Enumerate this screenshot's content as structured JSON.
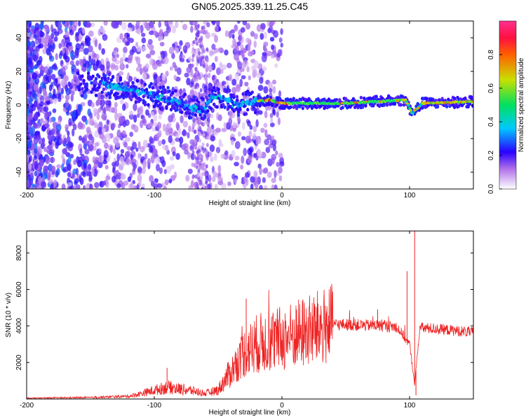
{
  "title": "GN05.2025.339.11.25.C45",
  "chart_data": [
    {
      "type": "heatmap",
      "title": "GN05.2025.339.11.25.C45",
      "xlabel": "Height of straight line (km)",
      "ylabel": "Frequency (Hz)",
      "xlim": [
        -200,
        150
      ],
      "ylim": [
        -50,
        50
      ],
      "xticks": [
        -200,
        -100,
        0,
        100
      ],
      "yticks": [
        -40,
        -20,
        0,
        20,
        40
      ],
      "colorbar": {
        "label": "Normalized spectral amplitude",
        "range": [
          0.0,
          1.0
        ],
        "ticks": [
          0.0,
          0.2,
          0.4,
          0.6,
          0.8
        ]
      },
      "ridge_frequency_hz": [
        {
          "x": -140,
          "y": 12
        },
        {
          "x": -120,
          "y": 9
        },
        {
          "x": -100,
          "y": 6
        },
        {
          "x": -80,
          "y": 1
        },
        {
          "x": -70,
          "y": -2
        },
        {
          "x": -60,
          "y": -3
        },
        {
          "x": -55,
          "y": 6
        },
        {
          "x": -45,
          "y": 4
        },
        {
          "x": -35,
          "y": -1
        },
        {
          "x": -25,
          "y": 2
        },
        {
          "x": -10,
          "y": 3
        },
        {
          "x": 0,
          "y": 1
        },
        {
          "x": 50,
          "y": 1
        },
        {
          "x": 97,
          "y": 3
        },
        {
          "x": 102,
          "y": -5
        },
        {
          "x": 110,
          "y": 1
        },
        {
          "x": 150,
          "y": 2
        }
      ]
    },
    {
      "type": "line",
      "xlabel": "Height of straight line (km)",
      "ylabel": "SNR (10 * v/v)",
      "xlim": [
        -200,
        150
      ],
      "ylim": [
        0,
        9200
      ],
      "xticks": [
        -200,
        -100,
        0,
        100
      ],
      "yticks": [
        2000,
        4000,
        6000,
        8000
      ],
      "series": [
        {
          "name": "SNR",
          "color": "#ee2222",
          "envelope": [
            {
              "x": -200,
              "y": 50
            },
            {
              "x": -150,
              "y": 80
            },
            {
              "x": -120,
              "y": 150
            },
            {
              "x": -110,
              "y": 300
            },
            {
              "x": -90,
              "y": 650
            },
            {
              "x": -70,
              "y": 450
            },
            {
              "x": -60,
              "y": 300
            },
            {
              "x": -50,
              "y": 500
            },
            {
              "x": -40,
              "y": 1500
            },
            {
              "x": -30,
              "y": 2500
            },
            {
              "x": -20,
              "y": 3000
            },
            {
              "x": -10,
              "y": 3200
            },
            {
              "x": 0,
              "y": 3300
            },
            {
              "x": 20,
              "y": 3700
            },
            {
              "x": 40,
              "y": 4100
            },
            {
              "x": 60,
              "y": 4050
            },
            {
              "x": 80,
              "y": 4000
            },
            {
              "x": 90,
              "y": 3950
            },
            {
              "x": 100,
              "y": 3000
            },
            {
              "x": 104,
              "y": 800
            },
            {
              "x": 108,
              "y": 3900
            },
            {
              "x": 120,
              "y": 3850
            },
            {
              "x": 150,
              "y": 3650
            }
          ],
          "peaks": [
            {
              "x": -90,
              "y": 1700
            },
            {
              "x": -28,
              "y": 5500
            },
            {
              "x": -15,
              "y": 4000
            },
            {
              "x": 35,
              "y": 4800
            },
            {
              "x": 75,
              "y": 4900
            },
            {
              "x": 98,
              "y": 7000
            },
            {
              "x": 104,
              "y": 9300
            },
            {
              "x": 105,
              "y": 200
            }
          ]
        }
      ]
    }
  ]
}
